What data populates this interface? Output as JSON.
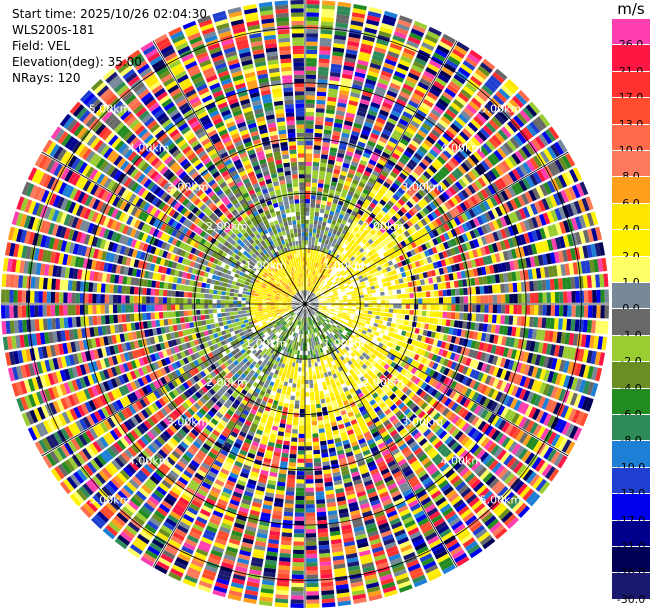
{
  "header": {
    "start_time": "Start time: 2025/10/26 02:04:30",
    "instrument": "WLS200s-181",
    "field": "Field: VEL",
    "elevation": "Elevation(deg): 35.00",
    "nrays": "NRays: 120"
  },
  "colorbar": {
    "unit": "m/s",
    "classes": [
      {
        "label": "26.0",
        "color": "#ff3eb0"
      },
      {
        "label": "21.0",
        "color": "#ff1744"
      },
      {
        "label": "17.0",
        "color": "#ff3030"
      },
      {
        "label": "13.0",
        "color": "#ff4d2e"
      },
      {
        "label": "10.0",
        "color": "#ff6a4a"
      },
      {
        "label": "8.0",
        "color": "#fb7a5c"
      },
      {
        "label": "6.0",
        "color": "#ff9f1c"
      },
      {
        "label": "4.0",
        "color": "#ffe600"
      },
      {
        "label": "2.0",
        "color": "#fff200"
      },
      {
        "label": "1.0",
        "color": "#ffff66"
      },
      {
        "label": "0.0",
        "color": "#778899"
      },
      {
        "label": "-1.0",
        "color": "#696969"
      },
      {
        "label": "-2.0",
        "color": "#9acd32"
      },
      {
        "label": "-4.0",
        "color": "#6b8e23"
      },
      {
        "label": "-6.0",
        "color": "#228b22"
      },
      {
        "label": "-8.0",
        "color": "#2e8b57"
      },
      {
        "label": "-10.0",
        "color": "#1e7fd6"
      },
      {
        "label": "-13.0",
        "color": "#1e3fd0"
      },
      {
        "label": "-17.0",
        "color": "#0000ee"
      },
      {
        "label": "-21.0",
        "color": "#00008b"
      },
      {
        "label": "-26.0",
        "color": "#000055"
      },
      {
        "label": "-30.0",
        "color": "#191970"
      }
    ]
  },
  "rings": [
    {
      "label": "1.00km"
    },
    {
      "label": "2.00km"
    },
    {
      "label": "3.00km"
    },
    {
      "label": "4.00km"
    },
    {
      "label": "5.00km"
    }
  ],
  "scan": {
    "nrays": 120,
    "max_range_km": 5.5
  }
}
